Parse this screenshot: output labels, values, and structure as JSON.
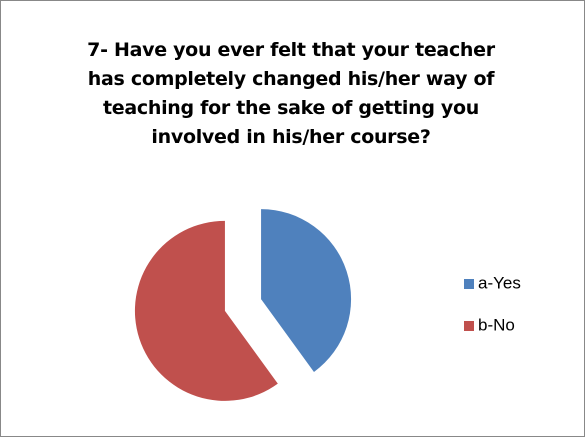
{
  "chart_data": {
    "type": "pie",
    "title": "7- Have you ever felt that your teacher has completely changed his/her way of teaching for the sake of getting you involved in his/her course?",
    "categories": [
      "a-Yes",
      "b-No"
    ],
    "values": [
      40,
      60
    ],
    "colors": [
      "#4f81bd",
      "#c0504d"
    ],
    "legend": "right"
  }
}
